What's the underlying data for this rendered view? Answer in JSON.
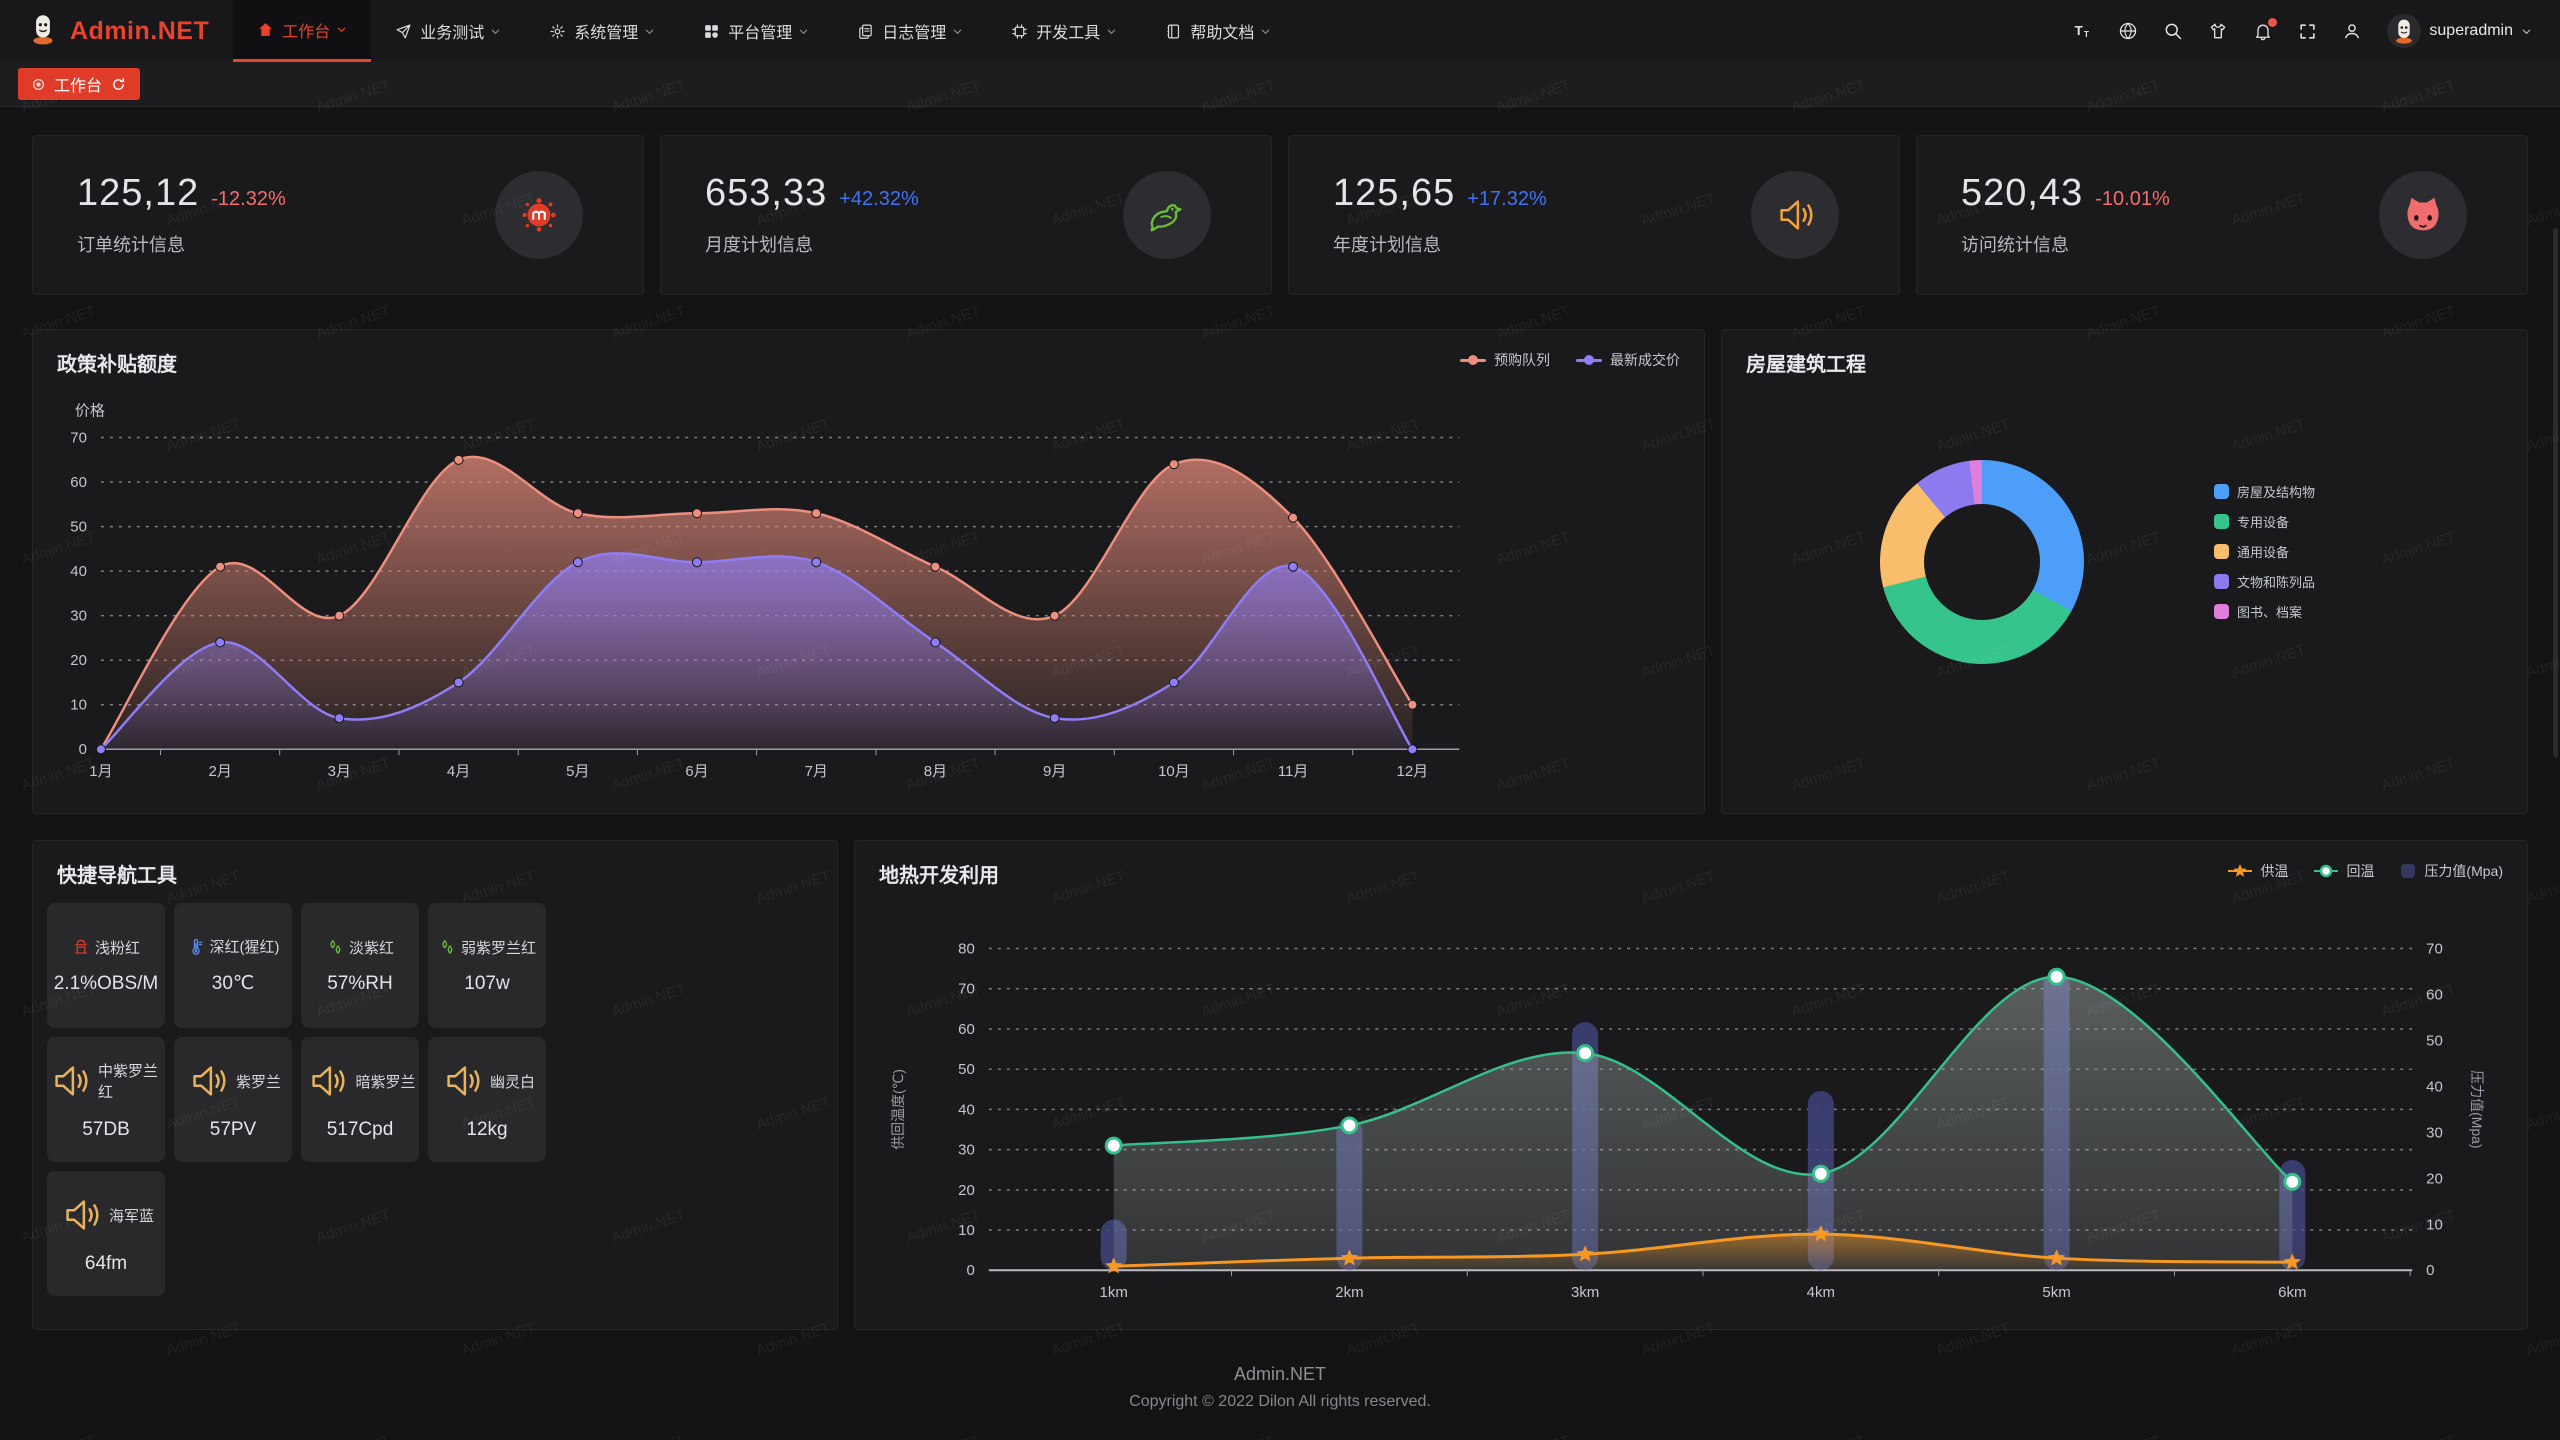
{
  "brand": {
    "name": "Admin.NET",
    "accent": "#e8432d"
  },
  "navbar": {
    "menus": [
      {
        "label": "工作台",
        "icon": "home-icon",
        "active": true
      },
      {
        "label": "业务测试",
        "icon": "send-icon",
        "active": false
      },
      {
        "label": "系统管理",
        "icon": "gear-icon",
        "active": false
      },
      {
        "label": "平台管理",
        "icon": "grid-icon",
        "active": false
      },
      {
        "label": "日志管理",
        "icon": "document-icon",
        "active": false
      },
      {
        "label": "开发工具",
        "icon": "chip-icon",
        "active": false
      },
      {
        "label": "帮助文档",
        "icon": "book-icon",
        "active": false
      }
    ],
    "tools": [
      {
        "icon": "font-size-icon"
      },
      {
        "icon": "language-icon"
      },
      {
        "icon": "search-icon"
      },
      {
        "icon": "theme-icon"
      },
      {
        "icon": "notification-bell-icon",
        "badge": true
      },
      {
        "icon": "fullscreen-icon"
      },
      {
        "icon": "user-icon"
      }
    ],
    "user": {
      "name": "superadmin"
    }
  },
  "tabbar": {
    "active_tab": "工作台"
  },
  "stat_cards": [
    {
      "value": "125,12",
      "delta": "-12.32%",
      "delta_color": "#f56c6c",
      "label": "订单统计信息",
      "icon": "splat-icon",
      "icon_color": "#e23c28"
    },
    {
      "value": "653,33",
      "delta": "+42.32%",
      "delta_color": "#3f74f6",
      "label": "月度计划信息",
      "icon": "bird-icon",
      "icon_color": "#6abe39"
    },
    {
      "value": "125,65",
      "delta": "+17.32%",
      "delta_color": "#3f74f6",
      "label": "年度计划信息",
      "icon": "speaker-icon",
      "icon_color": "#f2a23a"
    },
    {
      "value": "520,43",
      "delta": "-10.01%",
      "delta_color": "#f56c6c",
      "label": "访问统计信息",
      "icon": "cat-icon",
      "icon_color": "#f16d6d"
    }
  ],
  "chart_data": [
    {
      "type": "line",
      "title": "政策补贴额度",
      "ylabel": "价格",
      "ylim": [
        0,
        70
      ],
      "grid": "dashed",
      "legend_position": "top-right",
      "categories": [
        "1月",
        "2月",
        "3月",
        "4月",
        "5月",
        "6月",
        "7月",
        "8月",
        "9月",
        "10月",
        "11月",
        "12月"
      ],
      "series": [
        {
          "name": "预购队列",
          "color": "#ec8f7e",
          "values": [
            0,
            41,
            30,
            65,
            53,
            53,
            53,
            41,
            30,
            64,
            52,
            10
          ]
        },
        {
          "name": "最新成交价",
          "color": "#8f7df5",
          "values": [
            0,
            24,
            7,
            15,
            42,
            42,
            42,
            24,
            7,
            15,
            41,
            0
          ]
        }
      ]
    },
    {
      "type": "pie",
      "title": "房屋建筑工程",
      "donut": true,
      "legend_position": "right",
      "slices": [
        {
          "name": "房屋及结构物",
          "value": 33,
          "color": "#4d9ef8"
        },
        {
          "name": "专用设备",
          "value": 38,
          "color": "#35c48c"
        },
        {
          "name": "通用设备",
          "value": 18,
          "color": "#f8be6b"
        },
        {
          "name": "文物和陈列品",
          "value": 9,
          "color": "#8b7bef"
        },
        {
          "name": "图书、档案",
          "value": 2,
          "color": "#dd7fdb"
        }
      ]
    },
    {
      "type": "mixed",
      "title": "地热开发利用",
      "categories": [
        "1km",
        "2km",
        "3km",
        "4km",
        "5km",
        "6km"
      ],
      "left_axis": {
        "label": "供回温度(℃)",
        "range": [
          0,
          80
        ]
      },
      "right_axis": {
        "label": "压力值(Mpa)",
        "range": [
          0,
          70
        ]
      },
      "grid": "dashed",
      "legend_position": "top-right",
      "series": [
        {
          "name": "供温",
          "type": "line",
          "marker": "star",
          "axis": "left",
          "color": "#f69823",
          "values": [
            1,
            3,
            4,
            9,
            3,
            2
          ]
        },
        {
          "name": "回温",
          "type": "line",
          "marker": "circle",
          "axis": "left",
          "color": "#35c08a",
          "values": [
            31,
            36,
            54,
            24,
            73,
            22
          ]
        },
        {
          "name": "压力值(Mpa)",
          "type": "bar",
          "axis": "right",
          "color": "#3d4178",
          "values": [
            11,
            33,
            54,
            39,
            65,
            24
          ]
        }
      ]
    }
  ],
  "quick_nav": {
    "title": "快捷导航工具",
    "tiles": [
      {
        "name": "浅粉红",
        "value": "2.1%OBS/M",
        "icon": "hydrant-icon",
        "icon_color": "#d93a30"
      },
      {
        "name": "深红(猩红)",
        "value": "30℃",
        "icon": "thermometer-icon",
        "icon_color": "#5b8ff9"
      },
      {
        "name": "淡紫红",
        "value": "57%RH",
        "icon": "drops-icon",
        "icon_color": "#6abe39"
      },
      {
        "name": "弱紫罗兰红",
        "value": "107w",
        "icon": "drops-icon",
        "icon_color": "#6abe39"
      },
      {
        "name": "中紫罗兰红",
        "value": "57DB",
        "icon": "speaker-icon",
        "icon_color": "#e8b25c"
      },
      {
        "name": "紫罗兰",
        "value": "57PV",
        "icon": "speaker-icon",
        "icon_color": "#e8b25c"
      },
      {
        "name": "暗紫罗兰",
        "value": "517Cpd",
        "icon": "speaker-icon",
        "icon_color": "#e8b25c"
      },
      {
        "name": "幽灵白",
        "value": "12kg",
        "icon": "speaker-icon",
        "icon_color": "#e8b25c"
      },
      {
        "name": "海军蓝",
        "value": "64fm",
        "icon": "speaker-icon",
        "icon_color": "#e8b25c"
      }
    ]
  },
  "footer": {
    "line1": "Admin.NET",
    "line2": "Copyright © 2022 Dilon All rights reserved."
  },
  "watermark": {
    "text": "Admin.NET"
  }
}
